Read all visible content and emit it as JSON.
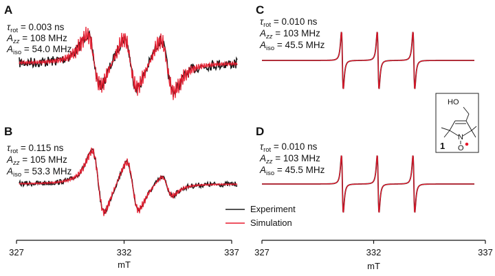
{
  "colors": {
    "experiment": "#1a1a1a",
    "simulation": "#e8192c",
    "axis": "#111111"
  },
  "legend": {
    "experiment": "Experiment",
    "simulation": "Simulation",
    "placement": "lower-right of left column"
  },
  "molecule": {
    "label": "1",
    "hydroxyl": "HO",
    "nitrogen": "N",
    "oxygen": "O"
  },
  "chart_data": [
    {
      "panel": "A",
      "type": "line",
      "params": {
        "tau_sub": "rot",
        "tau_value": " = 0.003 ns",
        "azz_sub": "zz",
        "azz_value": " = 108 MHz",
        "aiso_sub": "iso",
        "aiso_value": " = 54.0 MHz"
      },
      "lines_mT": [
        330.6,
        332.3,
        334.0
      ],
      "widths_mT": [
        0.55,
        0.55,
        0.55
      ],
      "amplitudes": [
        1.0,
        1.0,
        1.0
      ],
      "noise": "high",
      "x_range": [
        327,
        337
      ],
      "series": [
        {
          "name": "Experiment"
        },
        {
          "name": "Simulation"
        }
      ]
    },
    {
      "panel": "B",
      "type": "line",
      "params": {
        "tau_sub": "rot",
        "tau_value": " = 0.115 ns",
        "azz_sub": "zz",
        "azz_value": " = 105 MHz",
        "aiso_sub": "iso",
        "aiso_value": " = 53.3 MHz"
      },
      "lines_mT": [
        330.8,
        332.4,
        334.0
      ],
      "widths_mT": [
        0.5,
        0.5,
        0.45
      ],
      "amplitudes": [
        1.0,
        0.8,
        0.32
      ],
      "noise": "medium",
      "x_range": [
        327,
        337
      ],
      "series": [
        {
          "name": "Experiment"
        },
        {
          "name": "Simulation"
        }
      ]
    },
    {
      "panel": "C",
      "type": "line",
      "params": {
        "tau_sub": "rot",
        "tau_value": " = 0.010 ns",
        "azz_sub": "zz",
        "azz_value": " = 103 MHz",
        "aiso_sub": "iso",
        "aiso_value": " = 45.5 MHz"
      },
      "lines_mT": [
        330.6,
        332.2,
        333.8
      ],
      "widths_mT": [
        0.07,
        0.07,
        0.07
      ],
      "amplitudes": [
        1.0,
        1.0,
        1.0
      ],
      "noise": "none",
      "x_range": [
        327,
        337
      ],
      "series": [
        {
          "name": "Experiment"
        },
        {
          "name": "Simulation"
        }
      ]
    },
    {
      "panel": "D",
      "type": "line",
      "params": {
        "tau_sub": "rot",
        "tau_value": " = 0.010 ns",
        "azz_sub": "zz",
        "azz_value": " = 103 MHz",
        "aiso_sub": "iso",
        "aiso_value": " = 45.5 MHz"
      },
      "lines_mT": [
        330.6,
        332.2,
        333.8
      ],
      "widths_mT": [
        0.07,
        0.07,
        0.07
      ],
      "amplitudes": [
        1.0,
        1.0,
        1.0
      ],
      "noise": "none",
      "x_range": [
        327,
        337
      ],
      "series": [
        {
          "name": "Experiment"
        },
        {
          "name": "Simulation"
        }
      ]
    }
  ],
  "axes": [
    {
      "column": "left",
      "ticks": [
        "327",
        "332",
        "337"
      ],
      "tick_values": [
        327,
        332,
        337
      ],
      "xlabel": "mT"
    },
    {
      "column": "right",
      "ticks": [
        "327",
        "332",
        "337"
      ],
      "tick_values": [
        327,
        332,
        337
      ],
      "xlabel": "mT"
    }
  ]
}
